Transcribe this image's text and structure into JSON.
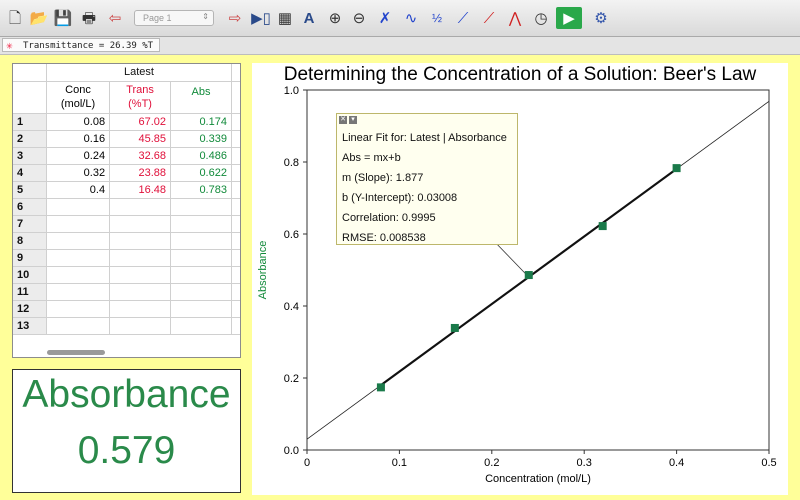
{
  "toolbar": {
    "page_select": "Page 1",
    "icons": [
      "new-file-icon",
      "open-folder-icon",
      "save-icon",
      "print-icon",
      "back-arrow-icon",
      "page-select",
      "next-page-icon",
      "table-icon",
      "calculator-icon",
      "auto-scale-icon",
      "zoom-in-icon",
      "zoom-out-icon",
      "examine-icon",
      "tangent-icon",
      "integral-icon",
      "statistics-icon",
      "linear-fit-icon",
      "curve-fit-icon",
      "timer-icon",
      "collect-icon",
      "settings-icon"
    ]
  },
  "meter_bar": {
    "reading": "Transmittance = 26.39 %T"
  },
  "table": {
    "group_header": "Latest",
    "columns": [
      {
        "name": "Conc",
        "unit": "(mol/L)",
        "color": "#000000"
      },
      {
        "name": "Trans",
        "unit": "(%T)",
        "color": "#e0103a"
      },
      {
        "name": "Abs",
        "unit": "",
        "color": "#118a3a"
      }
    ],
    "row_numbers": [
      "1",
      "2",
      "3",
      "4",
      "5",
      "6",
      "7",
      "8",
      "9",
      "10",
      "11",
      "12",
      "13"
    ],
    "rows": [
      {
        "conc": "0.08",
        "trans": "67.02",
        "abs": "0.174"
      },
      {
        "conc": "0.16",
        "trans": "45.85",
        "abs": "0.339"
      },
      {
        "conc": "0.24",
        "trans": "32.68",
        "abs": "0.486"
      },
      {
        "conc": "0.32",
        "trans": "23.88",
        "abs": "0.622"
      },
      {
        "conc": "0.4",
        "trans": "16.48",
        "abs": "0.783"
      }
    ]
  },
  "meter": {
    "label": "Absorbance",
    "value": "0.579"
  },
  "graph": {
    "title": "Determining the Concentration of a Solution: Beer's Law",
    "fit_box": {
      "line1": "Linear Fit for: Latest | Absorbance",
      "line2": "Abs = mx+b",
      "line3": "m (Slope): 1.877",
      "line4": "b (Y-Intercept): 0.03008",
      "line5": "Correlation: 0.9995",
      "line6": "RMSE: 0.008538"
    }
  },
  "chart_data": {
    "type": "scatter",
    "title": "Determining the Concentration of a Solution: Beer's Law",
    "xlabel": "Concentration (mol/L)",
    "ylabel": "Absorbance",
    "xlim": [
      0,
      0.5
    ],
    "ylim": [
      0,
      1.0
    ],
    "x_ticks": [
      "0",
      "0.1",
      "0.2",
      "0.3",
      "0.4",
      "0.5"
    ],
    "y_ticks": [
      "0.0",
      "0.2",
      "0.4",
      "0.6",
      "0.8",
      "1.0"
    ],
    "series": [
      {
        "x": [
          0.08,
          0.16,
          0.24,
          0.32,
          0.4
        ],
        "y": [
          0.174,
          0.339,
          0.486,
          0.622,
          0.783
        ],
        "color": "#1a7a4a"
      }
    ],
    "fit": {
      "slope": 1.877,
      "intercept": 0.03008
    },
    "ylabel_color": "#118a3a"
  }
}
